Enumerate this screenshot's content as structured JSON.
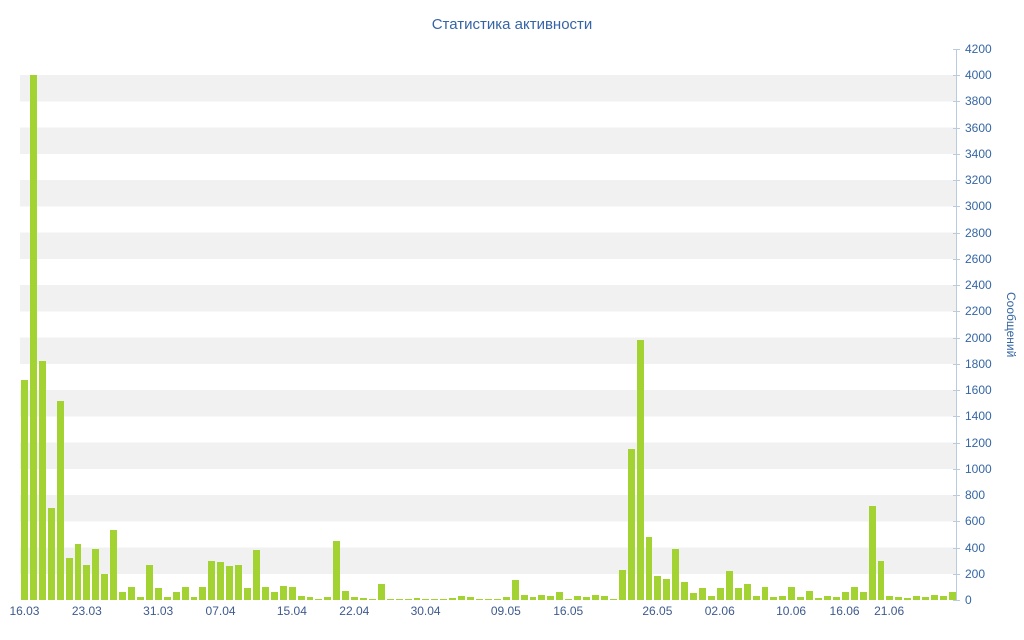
{
  "chart_data": {
    "type": "bar",
    "title": "Статистика активности",
    "ylabel": "Сообщений",
    "xlabel": "",
    "ylim": [
      0,
      4200
    ],
    "y_tick_step": 200,
    "grid": "horizontal-bands",
    "legend": "none",
    "bar_color": "#a3d233",
    "band_colors": [
      "#ffffff",
      "#f1f1f1"
    ],
    "axis_color": "#b9cbdd",
    "title_color": "#3565a5",
    "x_label_color": "#3e5a8e",
    "y_label_color": "#3566a4",
    "x_ticks": [
      {
        "i": 0,
        "label": "16.03"
      },
      {
        "i": 7,
        "label": "23.03"
      },
      {
        "i": 15,
        "label": "31.03"
      },
      {
        "i": 22,
        "label": "07.04"
      },
      {
        "i": 30,
        "label": "15.04"
      },
      {
        "i": 37,
        "label": "22.04"
      },
      {
        "i": 45,
        "label": "30.04"
      },
      {
        "i": 54,
        "label": "09.05"
      },
      {
        "i": 61,
        "label": "16.05"
      },
      {
        "i": 71,
        "label": "26.05"
      },
      {
        "i": 78,
        "label": "02.06"
      },
      {
        "i": 86,
        "label": "10.06"
      },
      {
        "i": 92,
        "label": "16.06"
      },
      {
        "i": 97,
        "label": "21.06"
      }
    ],
    "values": [
      1680,
      4000,
      1820,
      700,
      1520,
      320,
      430,
      270,
      390,
      200,
      530,
      60,
      100,
      20,
      270,
      90,
      20,
      60,
      100,
      20,
      100,
      300,
      290,
      260,
      270,
      90,
      380,
      100,
      60,
      110,
      100,
      30,
      20,
      10,
      20,
      450,
      70,
      20,
      15,
      10,
      120,
      10,
      5,
      5,
      15,
      10,
      5,
      10,
      15,
      30,
      20,
      10,
      5,
      10,
      20,
      150,
      40,
      20,
      40,
      30,
      60,
      10,
      30,
      20,
      40,
      30,
      10,
      230,
      1150,
      1980,
      480,
      180,
      160,
      390,
      140,
      50,
      90,
      30,
      90,
      220,
      90,
      120,
      30,
      100,
      20,
      30,
      100,
      20,
      70,
      15,
      30,
      20,
      60,
      100,
      60,
      720,
      300,
      30,
      20,
      15,
      30,
      20,
      40,
      30,
      60
    ]
  }
}
